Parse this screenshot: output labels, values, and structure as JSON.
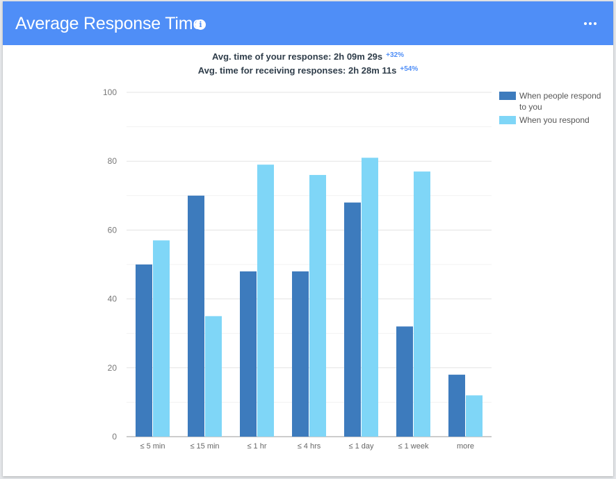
{
  "header": {
    "title": "Average Response Time",
    "info_icon": "info-icon",
    "more_icon": "more-horizontal-icon"
  },
  "stats": {
    "your_response_label": "Avg. time of your response: 2h 09m 29s",
    "your_response_delta": "+32%",
    "receiving_label": "Avg. time for receiving responses: 2h 28m 11s",
    "receiving_delta": "+54%"
  },
  "colors": {
    "header": "#4f8ef7",
    "series_dark": "#3d7bbd",
    "series_light": "#7fd6f7"
  },
  "chart_data": {
    "type": "bar",
    "categories": [
      "≤ 5 min",
      "≤ 15 min",
      "≤ 1 hr",
      "≤ 4 hrs",
      "≤ 1 day",
      "≤ 1 week",
      "more"
    ],
    "series": [
      {
        "name": "When people respond to you",
        "values": [
          50,
          70,
          48,
          48,
          68,
          32,
          18
        ],
        "color": "#3d7bbd"
      },
      {
        "name": "When you respond",
        "values": [
          57,
          35,
          79,
          76,
          81,
          77,
          12
        ],
        "color": "#7fd6f7"
      }
    ],
    "yticks": [
      0,
      20,
      40,
      60,
      80,
      100
    ],
    "ylim": [
      0,
      100
    ],
    "grid": true,
    "legend_position": "right"
  }
}
